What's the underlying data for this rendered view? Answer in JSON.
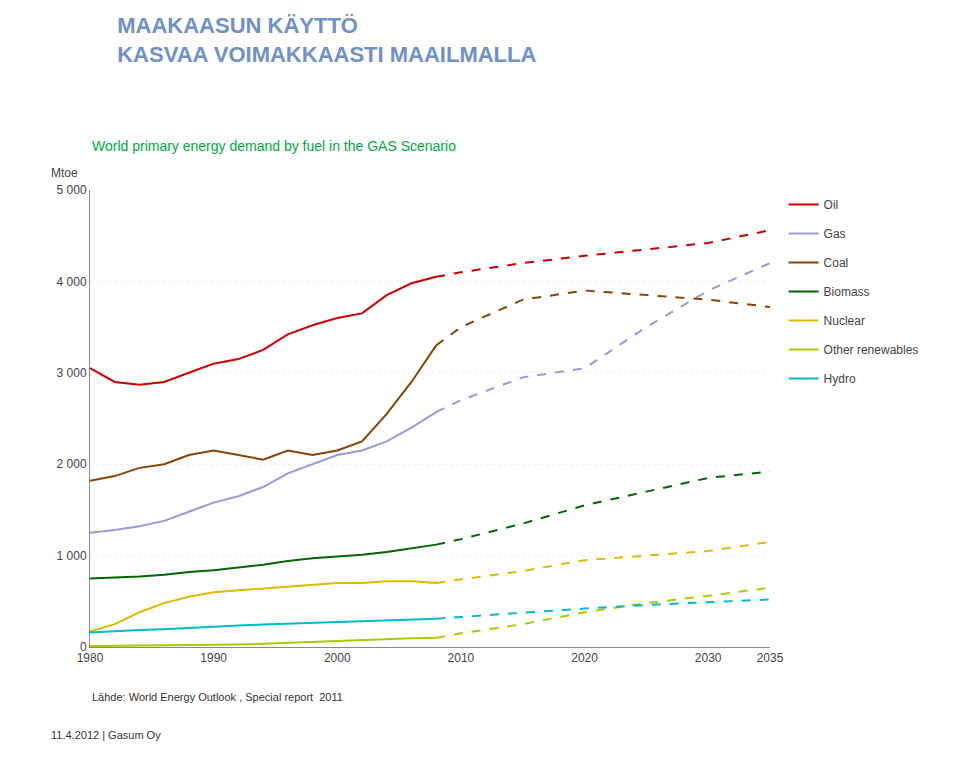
{
  "chart_data": {
    "type": "line",
    "title": [
      "MAAKAASUN KÄYTTÖ",
      "KASVAA VOIMAKKAASTI MAAILMALLA"
    ],
    "title_color": "#7090c8",
    "subtitle": "World primary energy demand by fuel in the GAS Scenario",
    "subtitle_color": "#00aa44",
    "source": "Lähde: World Energy Outlook , Special report  2011",
    "footer": "11.4.2012 | Gasum Oy",
    "ylabel": "Mtoe",
    "xlim": [
      1980,
      2035
    ],
    "xticks": [
      1980,
      1990,
      2000,
      2010,
      2020,
      2030,
      2035
    ],
    "ylim": [
      0,
      5000
    ],
    "yticks": [
      0,
      {
        "value": 1000,
        "label": "1 000"
      },
      {
        "value": 2000,
        "label": "2 000"
      },
      {
        "value": 3000,
        "label": "3 000"
      },
      {
        "value": 4000,
        "label": "4 000"
      },
      {
        "value": 5000,
        "label": "5 000"
      }
    ],
    "grid": "y",
    "legend": "right",
    "series": [
      {
        "name": "Oil",
        "color": "#cc0000",
        "line_style": "solid",
        "x": [
          1980,
          1982,
          1984,
          1986,
          1988,
          1990,
          1992,
          1994,
          1996,
          1998,
          2000,
          2002,
          2004,
          2006,
          2008
        ],
        "values": [
          3050,
          2900,
          2870,
          2900,
          3000,
          3100,
          3150,
          3250,
          3420,
          3520,
          3600,
          3650,
          3850,
          3980,
          4050
        ],
        "projection": {
          "line_style": "dashed",
          "x": [
            2008,
            2010,
            2015,
            2020,
            2025,
            2030,
            2035
          ],
          "values": [
            4050,
            4100,
            4200,
            4280,
            4350,
            4420,
            4560
          ]
        }
      },
      {
        "name": "Gas",
        "color": "#9999dd",
        "line_style": "solid",
        "x": [
          1980,
          1982,
          1984,
          1986,
          1988,
          1990,
          1992,
          1994,
          1996,
          1998,
          2000,
          2002,
          2004,
          2006,
          2008
        ],
        "values": [
          1250,
          1280,
          1320,
          1380,
          1480,
          1580,
          1650,
          1750,
          1900,
          2000,
          2100,
          2150,
          2250,
          2400,
          2570
        ],
        "projection": {
          "line_style": "dashed",
          "x": [
            2008,
            2010,
            2015,
            2020,
            2025,
            2030,
            2035
          ],
          "values": [
            2570,
            2700,
            2950,
            3050,
            3500,
            3900,
            4200
          ]
        }
      },
      {
        "name": "Coal",
        "color": "#884400",
        "line_style": "solid",
        "x": [
          1980,
          1982,
          1984,
          1986,
          1988,
          1990,
          1992,
          1994,
          1996,
          1998,
          2000,
          2002,
          2004,
          2006,
          2008
        ],
        "values": [
          1820,
          1870,
          1960,
          2000,
          2100,
          2150,
          2100,
          2050,
          2150,
          2100,
          2150,
          2250,
          2550,
          2900,
          3300
        ],
        "projection": {
          "line_style": "dashed",
          "x": [
            2008,
            2010,
            2015,
            2020,
            2025,
            2030,
            2035
          ],
          "values": [
            3300,
            3500,
            3800,
            3900,
            3850,
            3800,
            3720
          ]
        }
      },
      {
        "name": "Biomass",
        "color": "#006600",
        "line_style": "solid",
        "x": [
          1980,
          1982,
          1984,
          1986,
          1988,
          1990,
          1992,
          1994,
          1996,
          1998,
          2000,
          2002,
          2004,
          2006,
          2008
        ],
        "values": [
          750,
          760,
          770,
          790,
          820,
          840,
          870,
          900,
          940,
          970,
          990,
          1010,
          1040,
          1080,
          1120
        ],
        "projection": {
          "line_style": "dashed",
          "x": [
            2008,
            2010,
            2015,
            2020,
            2025,
            2030,
            2035
          ],
          "values": [
            1120,
            1180,
            1350,
            1550,
            1700,
            1850,
            1920
          ]
        }
      },
      {
        "name": "Nuclear",
        "color": "#ddbb00",
        "line_style": "solid",
        "x": [
          1980,
          1982,
          1984,
          1986,
          1988,
          1990,
          1992,
          1994,
          1996,
          1998,
          2000,
          2002,
          2004,
          2006,
          2008
        ],
        "values": [
          170,
          250,
          380,
          480,
          550,
          600,
          620,
          640,
          660,
          680,
          700,
          700,
          720,
          720,
          700
        ],
        "projection": {
          "line_style": "dashed",
          "x": [
            2008,
            2010,
            2015,
            2020,
            2025,
            2030,
            2035
          ],
          "values": [
            700,
            740,
            830,
            950,
            1000,
            1050,
            1150
          ]
        }
      },
      {
        "name": "Other renewables",
        "color": "#aacc00",
        "line_style": "solid",
        "x": [
          1980,
          1982,
          1984,
          1986,
          1988,
          1990,
          1992,
          1994,
          1996,
          1998,
          2000,
          2002,
          2004,
          2006,
          2008
        ],
        "values": [
          10,
          12,
          14,
          16,
          18,
          22,
          28,
          35,
          45,
          55,
          70,
          80,
          90,
          95,
          100
        ],
        "projection": {
          "line_style": "dashed",
          "x": [
            2008,
            2010,
            2015,
            2020,
            2025,
            2030,
            2035
          ],
          "values": [
            100,
            150,
            250,
            380,
            480,
            560,
            650
          ]
        }
      },
      {
        "name": "Hydro",
        "color": "#00bbcc",
        "line_style": "solid",
        "x": [
          1980,
          1982,
          1984,
          1986,
          1988,
          1990,
          1992,
          1994,
          1996,
          1998,
          2000,
          2002,
          2004,
          2006,
          2008
        ],
        "values": [
          160,
          175,
          185,
          195,
          210,
          220,
          235,
          245,
          255,
          265,
          275,
          285,
          295,
          305,
          310
        ],
        "projection": {
          "line_style": "dashed",
          "x": [
            2008,
            2010,
            2015,
            2020,
            2025,
            2030,
            2035
          ],
          "values": [
            310,
            330,
            375,
            420,
            460,
            490,
            520
          ]
        }
      }
    ]
  }
}
